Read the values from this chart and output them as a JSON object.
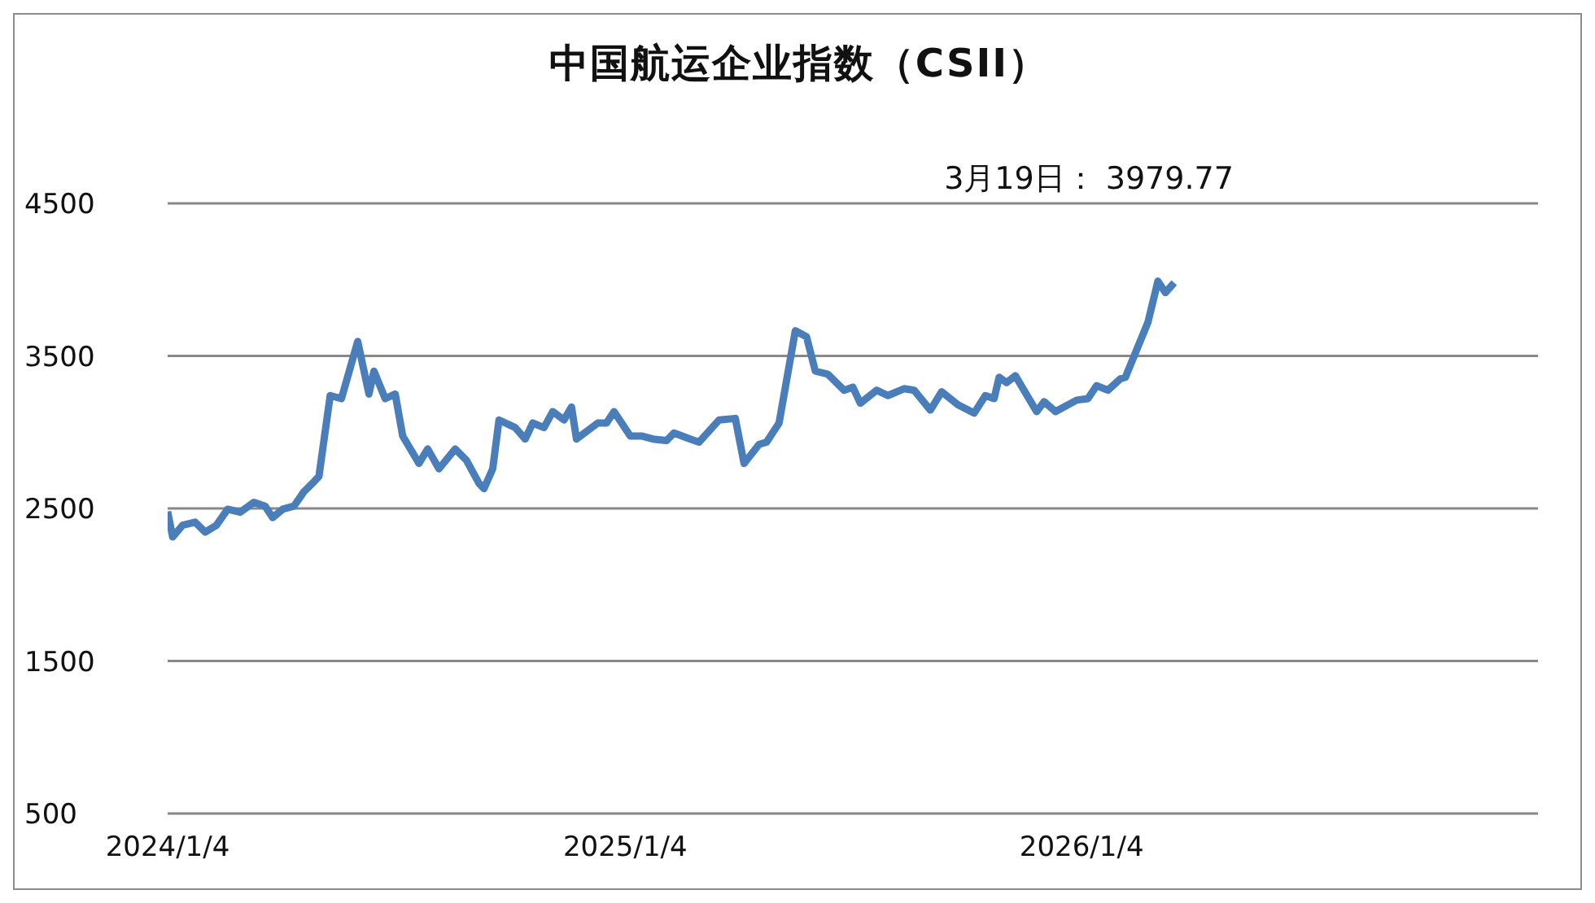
{
  "chart_data": {
    "type": "line",
    "title": "中国航运企业指数（CSII）",
    "annotations": [
      "3月19日： 3979.77"
    ],
    "x": [
      "2024-01-04",
      "2024-01-08",
      "2024-01-16",
      "2024-01-26",
      "2024-02-03",
      "2024-02-12",
      "2024-02-21",
      "2024-03-02",
      "2024-03-13",
      "2024-03-22",
      "2024-03-28",
      "2024-04-05",
      "2024-04-14",
      "2024-04-22",
      "2024-04-30",
      "2024-05-04",
      "2024-05-13",
      "2024-05-22",
      "2024-06-04",
      "2024-06-13",
      "2024-06-17",
      "2024-06-26",
      "2024-07-04",
      "2024-07-10",
      "2024-07-23",
      "2024-07-30",
      "2024-08-08",
      "2024-08-21",
      "2024-08-30",
      "2024-09-09",
      "2024-09-13",
      "2024-09-20",
      "2024-09-25",
      "2024-10-08",
      "2024-10-16",
      "2024-10-22",
      "2024-10-31",
      "2024-11-07",
      "2024-11-16",
      "2024-11-22",
      "2024-11-26",
      "2024-12-13",
      "2024-12-20",
      "2024-12-26",
      "2025-01-08",
      "2025-01-17",
      "2025-01-26",
      "2025-02-06",
      "2025-02-12",
      "2025-02-25",
      "2025-03-04",
      "2025-03-20",
      "2025-04-02",
      "2025-04-09",
      "2025-04-21",
      "2025-04-27",
      "2025-05-07",
      "2025-05-20",
      "2025-05-29",
      "2025-06-05",
      "2025-06-15",
      "2025-06-28",
      "2025-07-05",
      "2025-07-11",
      "2025-07-24",
      "2025-08-02",
      "2025-08-15",
      "2025-08-23",
      "2025-09-05",
      "2025-09-14",
      "2025-09-27",
      "2025-10-10",
      "2025-10-19",
      "2025-10-26",
      "2025-10-30",
      "2025-11-05",
      "2025-11-12",
      "2025-11-29",
      "2025-12-05",
      "2025-12-14",
      "2025-12-31",
      "2026-01-09",
      "2026-01-16",
      "2026-01-25",
      "2026-02-04",
      "2026-02-08",
      "2026-02-26",
      "2026-03-06",
      "2026-03-12",
      "2026-03-19"
    ],
    "series": [
      {
        "color": "#4a7ebb",
        "values": [
          2480,
          2313,
          2390,
          2410,
          2345,
          2390,
          2495,
          2475,
          2540,
          2515,
          2440,
          2495,
          2515,
          2610,
          2675,
          2710,
          3240,
          3220,
          3595,
          3250,
          3400,
          3220,
          3250,
          2975,
          2795,
          2890,
          2760,
          2890,
          2815,
          2665,
          2630,
          2760,
          3080,
          3030,
          2955,
          3060,
          3030,
          3135,
          3080,
          3165,
          2955,
          3060,
          3060,
          3135,
          2975,
          2975,
          2955,
          2945,
          2995,
          2955,
          2935,
          3080,
          3090,
          2795,
          2920,
          2935,
          3060,
          3665,
          3625,
          3400,
          3380,
          3275,
          3295,
          3190,
          3275,
          3240,
          3285,
          3275,
          3145,
          3265,
          3180,
          3125,
          3240,
          3220,
          3360,
          3325,
          3370,
          3135,
          3200,
          3135,
          3210,
          3220,
          3305,
          3275,
          3350,
          3360,
          3720,
          3990,
          3915,
          3979.77
        ]
      }
    ],
    "xlim": [
      "2024-01-04",
      "2027-01-04"
    ],
    "xticks": [
      {
        "value": "2024-01-04",
        "label": "2024/1/4"
      },
      {
        "value": "2025-01-04",
        "label": "2025/1/4"
      },
      {
        "value": "2026-01-04",
        "label": "2026/1/4"
      }
    ],
    "ylim": [
      500,
      4500
    ],
    "yticks": [
      500,
      1500,
      2500,
      3500,
      4500
    ],
    "grid": "y"
  }
}
